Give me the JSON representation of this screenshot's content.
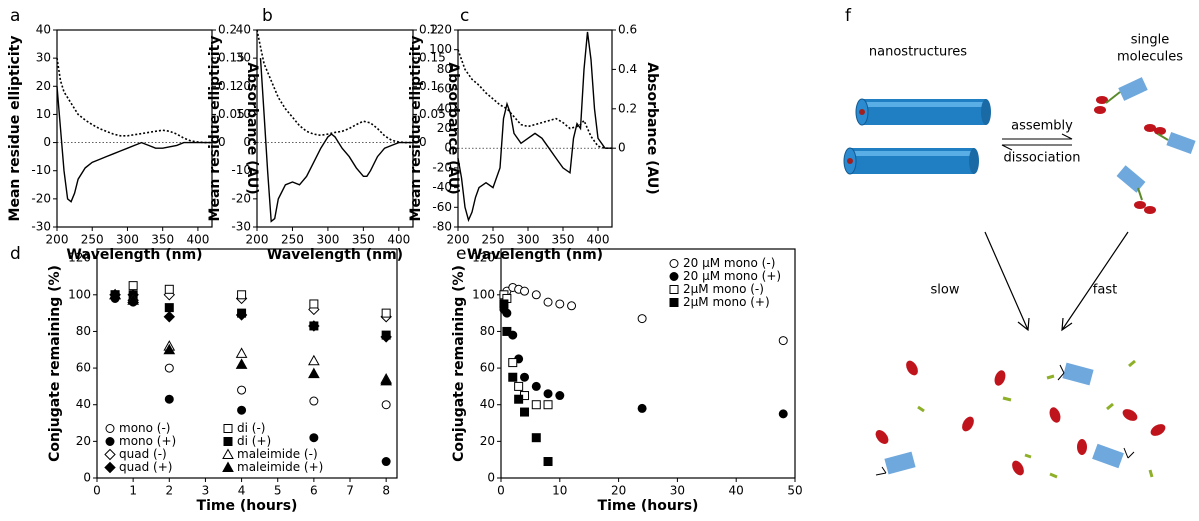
{
  "chart_data": [
    {
      "type": "line",
      "panel": "a",
      "xlabel": "Wavelength (nm)",
      "ylabel": "Mean residue ellipticity",
      "y2label": "Absorbance (AU)",
      "xlim": [
        200,
        420
      ],
      "xticks": [
        200,
        250,
        300,
        350,
        400
      ],
      "ylim": [
        -30,
        40
      ],
      "yticks": [
        -30,
        -20,
        -10,
        0,
        10,
        20,
        30,
        40
      ],
      "y2lim": [
        -0.15,
        0.2
      ],
      "y2ticks": [
        0,
        0.05,
        0.1,
        0.15,
        0.2
      ],
      "hline": 0,
      "series": [
        {
          "style": "solid",
          "color": "#000000",
          "x": [
            200,
            205,
            210,
            215,
            220,
            225,
            230,
            240,
            250,
            260,
            270,
            280,
            290,
            300,
            310,
            320,
            330,
            340,
            350,
            360,
            370,
            380,
            390,
            400,
            410,
            420
          ],
          "values": [
            20,
            5,
            -10,
            -20,
            -21,
            -18,
            -13,
            -9,
            -7,
            -6,
            -5,
            -4,
            -3,
            -2,
            -1,
            0,
            -1,
            -2,
            -2,
            -1.5,
            -1,
            0,
            0,
            0,
            0,
            0
          ]
        },
        {
          "style": "dotted",
          "axis": "y2",
          "color": "#000000",
          "x": [
            200,
            205,
            210,
            220,
            230,
            240,
            250,
            260,
            270,
            280,
            290,
            300,
            310,
            320,
            330,
            340,
            350,
            360,
            370,
            380,
            390,
            400,
            410,
            420
          ],
          "values": [
            0.15,
            0.11,
            0.09,
            0.07,
            0.05,
            0.04,
            0.032,
            0.025,
            0.02,
            0.015,
            0.012,
            0.012,
            0.014,
            0.016,
            0.018,
            0.02,
            0.022,
            0.02,
            0.015,
            0.008,
            0.003,
            0.001,
            0,
            0
          ]
        }
      ]
    },
    {
      "type": "line",
      "panel": "b",
      "xlabel": "Wavelength (nm)",
      "ylabel": "Mean residue ellipticity",
      "y2label": "Absorbance (AU)",
      "xlim": [
        200,
        420
      ],
      "xticks": [
        200,
        250,
        300,
        350,
        400
      ],
      "ylim": [
        -30,
        40
      ],
      "yticks": [
        -30,
        -20,
        -10,
        0,
        10,
        20,
        30,
        40
      ],
      "y2lim": [
        -0.15,
        0.2
      ],
      "y2ticks": [
        0,
        0.05,
        0.1,
        0.15,
        0.2
      ],
      "hline": 0,
      "series": [
        {
          "style": "solid",
          "color": "#000000",
          "x": [
            205,
            210,
            215,
            220,
            225,
            230,
            240,
            250,
            260,
            270,
            280,
            290,
            300,
            305,
            310,
            320,
            330,
            340,
            350,
            355,
            360,
            370,
            380,
            390,
            400,
            410,
            420
          ],
          "values": [
            30,
            10,
            -10,
            -28,
            -27,
            -20,
            -15,
            -14,
            -15,
            -12,
            -7,
            -2,
            2,
            3,
            2,
            -2,
            -5,
            -9,
            -12,
            -12,
            -10,
            -5,
            -2,
            -1,
            0,
            0,
            0
          ]
        },
        {
          "style": "dotted",
          "axis": "y2",
          "color": "#000000",
          "x": [
            200,
            205,
            210,
            220,
            230,
            240,
            250,
            260,
            270,
            280,
            290,
            300,
            310,
            320,
            330,
            340,
            350,
            360,
            370,
            380,
            390,
            400,
            410,
            420
          ],
          "values": [
            0.2,
            0.17,
            0.14,
            0.11,
            0.08,
            0.06,
            0.045,
            0.03,
            0.02,
            0.015,
            0.013,
            0.015,
            0.018,
            0.02,
            0.025,
            0.032,
            0.038,
            0.035,
            0.025,
            0.012,
            0.004,
            0.001,
            0,
            0
          ]
        }
      ]
    },
    {
      "type": "line",
      "panel": "c",
      "xlabel": "Wavelength (nm)",
      "ylabel": "Mean residue ellipticity",
      "y2label": "Absorbance (AU)",
      "xlim": [
        200,
        420
      ],
      "xticks": [
        200,
        250,
        300,
        350,
        400
      ],
      "ylim": [
        -80,
        120
      ],
      "yticks": [
        -80,
        -60,
        -40,
        -20,
        0,
        20,
        40,
        60,
        80,
        100,
        120
      ],
      "y2lim": [
        -0.4,
        0.6
      ],
      "y2ticks": [
        0,
        0.2,
        0.4,
        0.6
      ],
      "hline": 0,
      "series": [
        {
          "style": "solid",
          "color": "#000000",
          "x": [
            200,
            205,
            210,
            215,
            220,
            225,
            230,
            240,
            250,
            260,
            265,
            270,
            275,
            280,
            290,
            300,
            310,
            320,
            330,
            340,
            350,
            360,
            365,
            370,
            375,
            380,
            385,
            390,
            395,
            400,
            410,
            420
          ],
          "values": [
            -10,
            -30,
            -60,
            -73,
            -65,
            -50,
            -40,
            -35,
            -40,
            -20,
            30,
            45,
            35,
            15,
            5,
            10,
            15,
            10,
            0,
            -10,
            -20,
            -25,
            10,
            25,
            20,
            80,
            118,
            90,
            40,
            10,
            0,
            0
          ]
        },
        {
          "style": "dotted",
          "axis": "y2",
          "color": "#000000",
          "x": [
            200,
            210,
            220,
            230,
            240,
            250,
            260,
            270,
            280,
            290,
            300,
            310,
            320,
            330,
            340,
            350,
            360,
            370,
            375,
            380,
            390,
            400,
            410,
            420
          ],
          "values": [
            0.5,
            0.4,
            0.35,
            0.32,
            0.28,
            0.25,
            0.22,
            0.2,
            0.16,
            0.12,
            0.11,
            0.12,
            0.13,
            0.14,
            0.15,
            0.13,
            0.1,
            0.11,
            0.12,
            0.14,
            0.06,
            0.01,
            0,
            0
          ]
        }
      ]
    },
    {
      "type": "scatter",
      "panel": "d",
      "xlabel": "Time (hours)",
      "ylabel": "Conjugate remaining (%)",
      "xlim": [
        0,
        8.3
      ],
      "xticks": [
        0,
        1,
        2,
        3,
        4,
        5,
        6,
        7,
        8
      ],
      "ylim": [
        0,
        125
      ],
      "yticks": [
        0,
        20,
        40,
        60,
        80,
        100,
        120
      ],
      "legend": "lower left",
      "series": [
        {
          "name": "mono (-)",
          "marker": "circle",
          "filled": false,
          "color": "#000000",
          "x": [
            0.5,
            1,
            2,
            4,
            6,
            8
          ],
          "values": [
            100,
            100,
            60,
            48,
            42,
            40
          ]
        },
        {
          "name": "mono (+)",
          "marker": "circle",
          "filled": true,
          "color": "#000000",
          "x": [
            0.5,
            1,
            2,
            4,
            6,
            8
          ],
          "values": [
            98,
            96,
            43,
            37,
            22,
            9
          ]
        },
        {
          "name": "quad (-)",
          "marker": "diamond",
          "filled": false,
          "color": "#000000",
          "x": [
            0.5,
            1,
            2,
            4,
            6,
            8
          ],
          "values": [
            100,
            100,
            100,
            98,
            92,
            88
          ]
        },
        {
          "name": "quad (+)",
          "marker": "diamond",
          "filled": true,
          "color": "#000000",
          "x": [
            0.5,
            1,
            2,
            4,
            6,
            8
          ],
          "values": [
            100,
            97,
            88,
            89,
            83,
            77
          ]
        },
        {
          "name": "di (-)",
          "marker": "square",
          "filled": false,
          "color": "#000000",
          "x": [
            0.5,
            1,
            2,
            4,
            6,
            8
          ],
          "values": [
            100,
            105,
            103,
            100,
            95,
            90
          ]
        },
        {
          "name": "di (+)",
          "marker": "square",
          "filled": true,
          "color": "#000000",
          "x": [
            0.5,
            1,
            2,
            4,
            6,
            8
          ],
          "values": [
            100,
            100,
            93,
            90,
            83,
            78
          ]
        },
        {
          "name": "maleimide (-)",
          "marker": "triangle",
          "filled": false,
          "color": "#000000",
          "x": [
            0.5,
            1,
            2,
            4,
            6,
            8
          ],
          "values": [
            100,
            98,
            72,
            68,
            64,
            54
          ]
        },
        {
          "name": "maleimide (+)",
          "marker": "triangle",
          "filled": true,
          "color": "#000000",
          "x": [
            0.5,
            1,
            2,
            4,
            6,
            8
          ],
          "values": [
            100,
            97,
            70,
            62,
            57,
            53
          ]
        }
      ]
    },
    {
      "type": "scatter",
      "panel": "e",
      "xlabel": "Time (hours)",
      "ylabel": "Conjugate remaining (%)",
      "xlim": [
        0,
        50
      ],
      "xticks": [
        0,
        10,
        20,
        30,
        40,
        50
      ],
      "ylim": [
        0,
        125
      ],
      "yticks": [
        0,
        20,
        40,
        60,
        80,
        100,
        120
      ],
      "legend": "upper right",
      "series": [
        {
          "name": "20 µM mono (-)",
          "marker": "circle",
          "filled": false,
          "color": "#000000",
          "x": [
            0.5,
            1,
            2,
            3,
            4,
            6,
            8,
            10,
            12,
            24,
            48
          ],
          "values": [
            100,
            102,
            104,
            103,
            102,
            100,
            96,
            95,
            94,
            87,
            75
          ]
        },
        {
          "name": "20 µM mono (+)",
          "marker": "circle",
          "filled": true,
          "color": "#000000",
          "x": [
            0.5,
            1,
            2,
            3,
            4,
            6,
            8,
            10,
            24,
            48
          ],
          "values": [
            92,
            90,
            78,
            65,
            55,
            50,
            46,
            45,
            38,
            35
          ]
        },
        {
          "name": "2µM mono (-)",
          "marker": "square",
          "filled": false,
          "color": "#000000",
          "x": [
            0.5,
            1,
            2,
            3,
            4,
            6,
            8
          ],
          "values": [
            100,
            98,
            63,
            50,
            45,
            40,
            40
          ]
        },
        {
          "name": "2µM mono (+)",
          "marker": "square",
          "filled": true,
          "color": "#000000",
          "x": [
            0.5,
            1,
            2,
            3,
            4,
            6,
            8
          ],
          "values": [
            95,
            80,
            55,
            43,
            36,
            22,
            9
          ]
        }
      ]
    }
  ],
  "diagram": {
    "panel": "f",
    "labels": [
      "nanostructures",
      "single",
      "molecules",
      "assembly",
      "dissociation",
      "slow",
      "fast"
    ]
  }
}
